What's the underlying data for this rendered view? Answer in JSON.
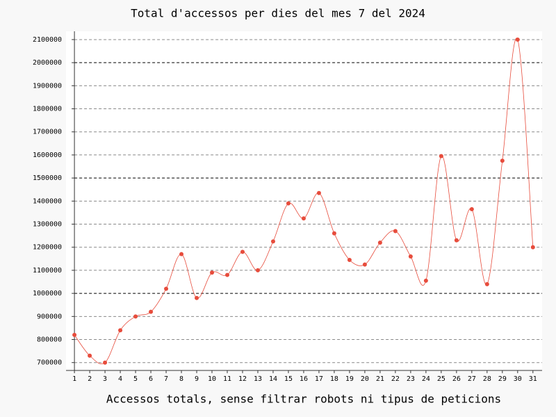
{
  "chart_data": {
    "type": "line",
    "title": "Total d'accessos per dies del mes 7 del 2024",
    "x_label": "Accessos totals, sense filtrar robots ni tipus de peticions",
    "x": [
      1,
      2,
      3,
      4,
      5,
      6,
      7,
      8,
      9,
      10,
      11,
      12,
      13,
      14,
      15,
      16,
      17,
      18,
      19,
      20,
      21,
      22,
      23,
      24,
      25,
      26,
      27,
      28,
      29,
      30,
      31
    ],
    "series": [
      {
        "color": "#e74c3c",
        "values": [
          820000,
          730000,
          700000,
          840000,
          900000,
          920000,
          1020000,
          1170000,
          980000,
          1090000,
          1080000,
          1180000,
          1100000,
          1225000,
          1390000,
          1325000,
          1435000,
          1260000,
          1145000,
          1125000,
          1220000,
          1270000,
          1160000,
          1055000,
          1595000,
          1230000,
          1365000,
          1040000,
          1575000,
          2100000,
          1200000
        ]
      }
    ],
    "xlim": [
      0.45,
      31.6
    ],
    "xticks": [
      1,
      2,
      3,
      4,
      5,
      6,
      7,
      8,
      9,
      10,
      11,
      12,
      13,
      14,
      15,
      16,
      17,
      18,
      19,
      20,
      21,
      22,
      23,
      24,
      25,
      26,
      27,
      28,
      29,
      30,
      31
    ],
    "ylim": [
      666000,
      2136000
    ],
    "yticks": [
      700000,
      800000,
      900000,
      1000000,
      1100000,
      1200000,
      1300000,
      1400000,
      1500000,
      1600000,
      1700000,
      1800000,
      1900000,
      2000000,
      2100000
    ],
    "grid": true
  }
}
